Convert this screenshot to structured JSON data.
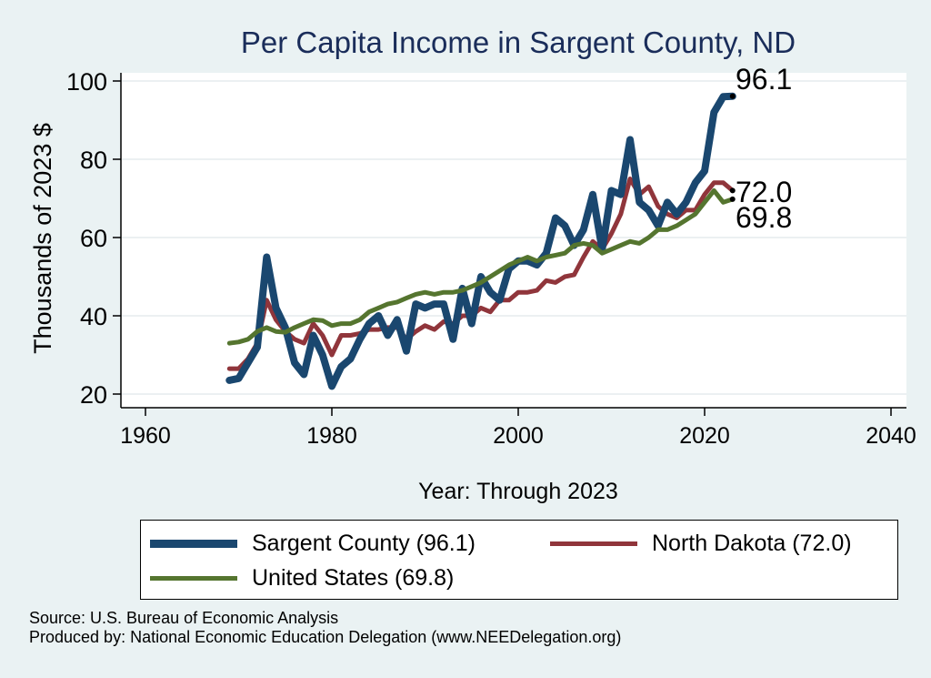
{
  "chart_data": {
    "type": "line",
    "title": "Per Capita Income in Sargent County, ND",
    "xlabel": "Year: Through 2023",
    "ylabel": "Thousands of 2023 $",
    "xlim": [
      1960,
      2040
    ],
    "ylim": [
      20,
      100
    ],
    "xticks": [
      1960,
      1980,
      2000,
      2020,
      2040
    ],
    "yticks": [
      20,
      40,
      60,
      80,
      100
    ],
    "grid": true,
    "x": [
      1969,
      1970,
      1971,
      1972,
      1973,
      1974,
      1975,
      1976,
      1977,
      1978,
      1979,
      1980,
      1981,
      1982,
      1983,
      1984,
      1985,
      1986,
      1987,
      1988,
      1989,
      1990,
      1991,
      1992,
      1993,
      1994,
      1995,
      1996,
      1997,
      1998,
      1999,
      2000,
      2001,
      2002,
      2003,
      2004,
      2005,
      2006,
      2007,
      2008,
      2009,
      2010,
      2011,
      2012,
      2013,
      2014,
      2015,
      2016,
      2017,
      2018,
      2019,
      2020,
      2021,
      2022,
      2023
    ],
    "series": [
      {
        "name": "Sargent County",
        "color": "#1a476f",
        "values": [
          23.5,
          24,
          28,
          32,
          55,
          42,
          37,
          28,
          25,
          35,
          30,
          22,
          27,
          29,
          34,
          38,
          40,
          35,
          39,
          31,
          43,
          42,
          43,
          43,
          34,
          47,
          38,
          50,
          46,
          44,
          52,
          54,
          54,
          53,
          56,
          65,
          63,
          58,
          62,
          71,
          57,
          72,
          71,
          85,
          69,
          67,
          63,
          69,
          66,
          69,
          74,
          77,
          92,
          96,
          96.1
        ],
        "end_label": "96.1"
      },
      {
        "name": "North Dakota",
        "color": "#90353b",
        "values": [
          26.5,
          26.5,
          29,
          33,
          44,
          39,
          36,
          34,
          33,
          38,
          35,
          30,
          35,
          35,
          35.5,
          36.5,
          36.5,
          37,
          37,
          34,
          36,
          37.5,
          36.5,
          38.5,
          38,
          40,
          40,
          42,
          41,
          44,
          44,
          46,
          46,
          46.5,
          49,
          48.5,
          50,
          50.5,
          55,
          59,
          57,
          61,
          66,
          75,
          71,
          73,
          68,
          66,
          65,
          67,
          67,
          71,
          74,
          74,
          72
        ],
        "end_label": "72.0"
      },
      {
        "name": "United States",
        "color": "#55752f",
        "values": [
          33,
          33.3,
          34,
          36,
          37,
          36,
          35.8,
          37,
          38,
          39,
          38.8,
          37.5,
          38,
          38,
          39,
          41,
          42,
          43,
          43.5,
          44.5,
          45.5,
          46,
          45.5,
          46,
          46,
          46.5,
          47.5,
          48.5,
          50,
          51.5,
          53,
          54,
          55,
          54,
          55,
          55.5,
          56,
          58,
          58.5,
          58,
          56,
          57,
          58,
          59,
          58.5,
          60,
          62,
          62,
          63,
          64.5,
          66,
          69,
          72,
          69,
          69.8
        ],
        "end_label": "69.8"
      }
    ],
    "legend_position": "bottom"
  },
  "legend": {
    "items": [
      {
        "label": "Sargent County (96.1)",
        "color": "#1a476f"
      },
      {
        "label": "North Dakota (72.0)",
        "color": "#90353b"
      },
      {
        "label": "United States (69.8)",
        "color": "#55752f"
      }
    ]
  },
  "footer": {
    "source": "Source: U.S. Bureau of Economic Analysis",
    "producer": "Produced by: National Economic Education Delegation (www.NEEDelegation.org)"
  }
}
